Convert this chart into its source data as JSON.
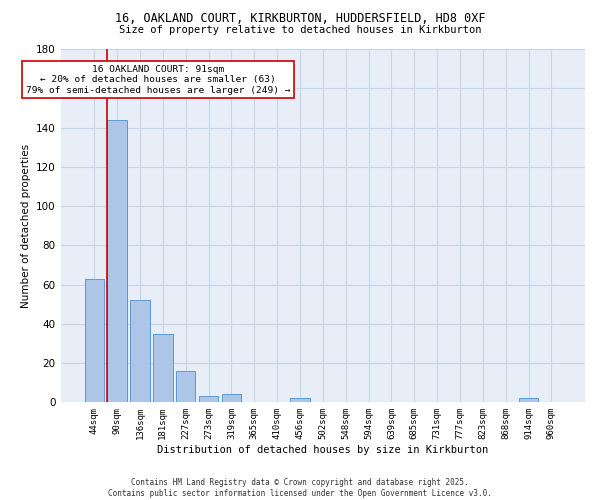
{
  "title1": "16, OAKLAND COURT, KIRKBURTON, HUDDERSFIELD, HD8 0XF",
  "title2": "Size of property relative to detached houses in Kirkburton",
  "xlabel": "Distribution of detached houses by size in Kirkburton",
  "ylabel": "Number of detached properties",
  "categories": [
    "44sqm",
    "90sqm",
    "136sqm",
    "181sqm",
    "227sqm",
    "273sqm",
    "319sqm",
    "365sqm",
    "410sqm",
    "456sqm",
    "502sqm",
    "548sqm",
    "594sqm",
    "639sqm",
    "685sqm",
    "731sqm",
    "777sqm",
    "823sqm",
    "868sqm",
    "914sqm",
    "960sqm"
  ],
  "values": [
    63,
    144,
    52,
    35,
    16,
    3,
    4,
    0,
    0,
    2,
    0,
    0,
    0,
    0,
    0,
    0,
    0,
    0,
    0,
    2,
    0
  ],
  "bar_color": "#adc6e8",
  "bar_edge_color": "#5b9bd5",
  "grid_color": "#c8d4e8",
  "bg_color": "#e8eef8",
  "vline_color": "#cc0000",
  "vline_x_index": 1,
  "annotation_text": "16 OAKLAND COURT: 91sqm\n← 20% of detached houses are smaller (63)\n79% of semi-detached houses are larger (249) →",
  "annotation_box_color": "#ffffff",
  "annotation_box_edge": "#cc0000",
  "ylim": [
    0,
    180
  ],
  "yticks": [
    0,
    20,
    40,
    60,
    80,
    100,
    120,
    140,
    160,
    180
  ],
  "footer": "Contains HM Land Registry data © Crown copyright and database right 2025.\nContains public sector information licensed under the Open Government Licence v3.0."
}
